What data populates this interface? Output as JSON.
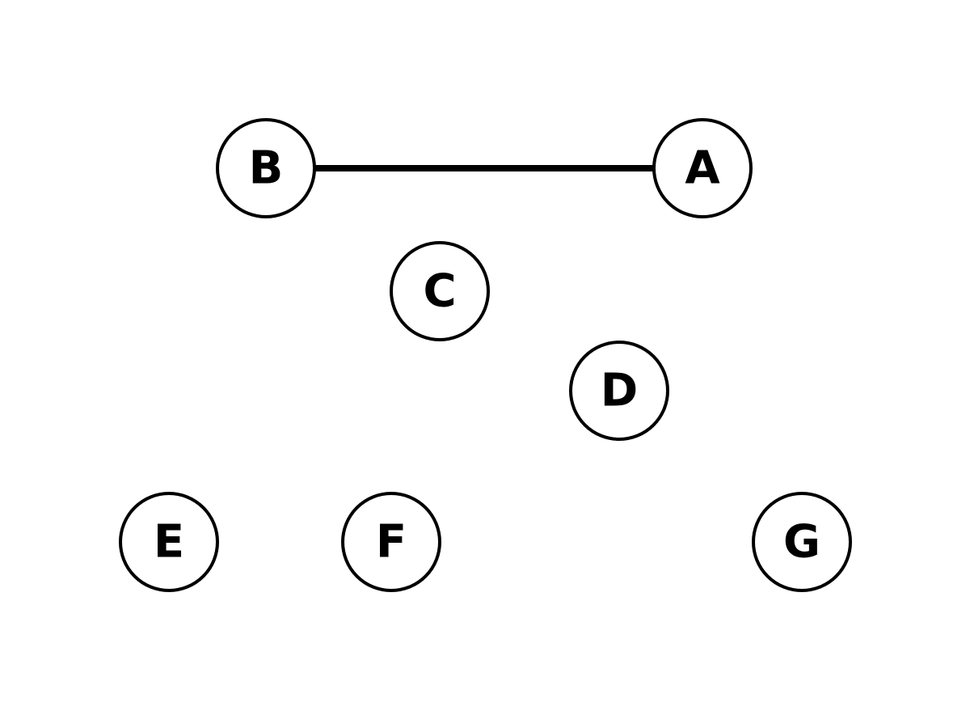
{
  "colors": {
    "background": "#ffffff",
    "node_fill": "#ffffff",
    "stroke": "#000000",
    "label": "#000000"
  },
  "nodes": [
    {
      "id": "A",
      "label": "A"
    },
    {
      "id": "B",
      "label": "B"
    },
    {
      "id": "C",
      "label": "C"
    },
    {
      "id": "D",
      "label": "D"
    },
    {
      "id": "E",
      "label": "E"
    },
    {
      "id": "F",
      "label": "F"
    },
    {
      "id": "G",
      "label": "G"
    }
  ],
  "edges": [
    {
      "from": "B",
      "to": "A"
    }
  ]
}
